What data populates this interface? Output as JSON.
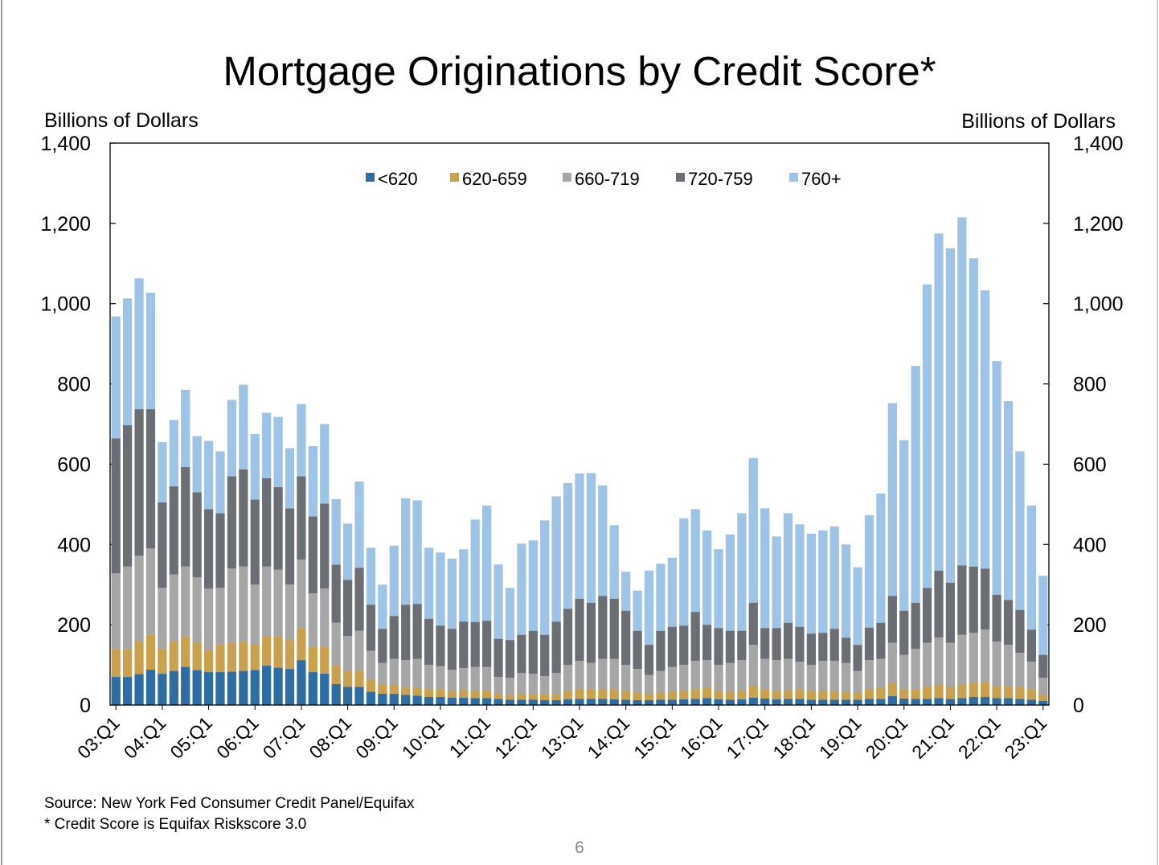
{
  "chart_data": {
    "type": "stacked_bar",
    "title": "Mortgage Originations by Credit Score*",
    "y_label": "Billions of Dollars",
    "y2_label": "Billions of Dollars",
    "source": "Source: New York Fed Consumer Credit Panel/Equifax",
    "note": "* Credit Score is Equifax Riskscore 3.0",
    "page_number": "6",
    "categories": [
      "03:Q1",
      null,
      null,
      null,
      "04:Q1",
      null,
      null,
      null,
      "05:Q1",
      null,
      null,
      null,
      "06:Q1",
      null,
      null,
      null,
      "07:Q1",
      null,
      null,
      null,
      "08:Q1",
      null,
      null,
      null,
      "09:Q1",
      null,
      null,
      null,
      "10:Q1",
      null,
      null,
      null,
      "11:Q1",
      null,
      null,
      null,
      "12:Q1",
      null,
      null,
      null,
      "13:Q1",
      null,
      null,
      null,
      "14:Q1",
      null,
      null,
      null,
      "15:Q1",
      null,
      null,
      null,
      "16:Q1",
      null,
      null,
      null,
      "17:Q1",
      null,
      null,
      null,
      "18:Q1",
      null,
      null,
      null,
      "19:Q1",
      null,
      null,
      null,
      "20:Q1",
      null,
      null,
      null,
      "21:Q1",
      null,
      null,
      null,
      "22:Q1",
      null,
      null,
      null,
      "23:Q1"
    ],
    "series": [
      {
        "name": "<620",
        "color": "#2e6ca4",
        "values": [
          70,
          70,
          77,
          88,
          78,
          85,
          95,
          87,
          82,
          82,
          83,
          85,
          87,
          98,
          93,
          90,
          112,
          82,
          78,
          52,
          45,
          45,
          33,
          28,
          28,
          25,
          23,
          20,
          20,
          18,
          18,
          17,
          17,
          15,
          13,
          13,
          13,
          12,
          12,
          14,
          15,
          15,
          15,
          14,
          13,
          12,
          12,
          13,
          13,
          14,
          15,
          17,
          14,
          13,
          14,
          18,
          16,
          14,
          15,
          15,
          13,
          13,
          13,
          13,
          13,
          15,
          15,
          22,
          16,
          15,
          15,
          17,
          15,
          17,
          20,
          20,
          17,
          17,
          15,
          13,
          10
        ]
      },
      {
        "name": "620-659",
        "color": "#c9a04d",
        "values": [
          70,
          70,
          81,
          87,
          62,
          73,
          75,
          68,
          55,
          68,
          72,
          73,
          65,
          72,
          79,
          72,
          80,
          63,
          67,
          46,
          40,
          40,
          29,
          22,
          24,
          20,
          20,
          20,
          20,
          17,
          19,
          18,
          18,
          13,
          12,
          14,
          15,
          16,
          16,
          21,
          23,
          23,
          23,
          24,
          22,
          18,
          16,
          17,
          22,
          21,
          23,
          25,
          21,
          20,
          21,
          30,
          24,
          21,
          22,
          23,
          22,
          22,
          22,
          20,
          17,
          25,
          27,
          33,
          24,
          25,
          30,
          33,
          30,
          35,
          35,
          37,
          31,
          31,
          30,
          25,
          15
        ]
      },
      {
        "name": "660-719",
        "color": "#a6a6a6",
        "values": [
          188,
          205,
          214,
          215,
          152,
          167,
          175,
          163,
          153,
          142,
          185,
          187,
          148,
          175,
          165,
          138,
          170,
          133,
          145,
          107,
          87,
          100,
          73,
          55,
          63,
          67,
          72,
          60,
          57,
          53,
          55,
          60,
          60,
          42,
          43,
          53,
          50,
          44,
          52,
          65,
          72,
          67,
          77,
          77,
          65,
          60,
          47,
          55,
          60,
          65,
          72,
          70,
          65,
          72,
          77,
          102,
          75,
          77,
          78,
          70,
          65,
          75,
          75,
          72,
          55,
          72,
          73,
          100,
          85,
          100,
          110,
          118,
          110,
          123,
          125,
          131,
          110,
          102,
          85,
          70,
          43
        ]
      },
      {
        "name": "720-759",
        "color": "#6b6e75",
        "values": [
          336,
          352,
          365,
          347,
          213,
          220,
          248,
          212,
          198,
          186,
          230,
          242,
          212,
          220,
          206,
          190,
          208,
          192,
          212,
          145,
          140,
          157,
          115,
          85,
          107,
          138,
          137,
          115,
          101,
          102,
          116,
          112,
          115,
          95,
          94,
          95,
          107,
          103,
          128,
          140,
          155,
          150,
          157,
          150,
          135,
          95,
          75,
          100,
          100,
          98,
          122,
          88,
          92,
          80,
          73,
          105,
          77,
          80,
          90,
          87,
          78,
          70,
          80,
          63,
          65,
          81,
          90,
          117,
          110,
          115,
          137,
          167,
          150,
          173,
          165,
          152,
          117,
          112,
          107,
          80,
          57
        ]
      },
      {
        "name": "760+",
        "color": "#9dc3e6",
        "values": [
          304,
          316,
          326,
          290,
          150,
          165,
          192,
          140,
          170,
          154,
          190,
          211,
          163,
          163,
          175,
          150,
          180,
          175,
          198,
          163,
          140,
          215,
          142,
          110,
          175,
          265,
          258,
          177,
          182,
          175,
          180,
          255,
          287,
          185,
          130,
          227,
          225,
          285,
          312,
          313,
          312,
          323,
          275,
          183,
          97,
          100,
          185,
          167,
          172,
          267,
          256,
          235,
          196,
          240,
          293,
          360,
          298,
          228,
          273,
          255,
          249,
          255,
          255,
          232,
          193,
          280,
          322,
          480,
          425,
          590,
          756,
          840,
          833,
          867,
          768,
          693,
          582,
          495,
          395,
          309,
          197
        ]
      }
    ],
    "ylim": [
      0,
      1400
    ],
    "yticks": [
      0,
      200,
      400,
      600,
      800,
      {
        "value": 1000,
        "label": "1,000"
      },
      {
        "value": 1200,
        "label": "1,200"
      },
      {
        "value": 1400,
        "label": "1,400"
      }
    ],
    "y2lim": [
      0,
      1400
    ],
    "y2ticks": [
      0,
      200,
      400,
      600,
      800,
      {
        "value": 1000,
        "label": "1,000"
      },
      {
        "value": 1200,
        "label": "1,200"
      },
      {
        "value": 1400,
        "label": "1,400"
      }
    ],
    "legend": "top"
  }
}
